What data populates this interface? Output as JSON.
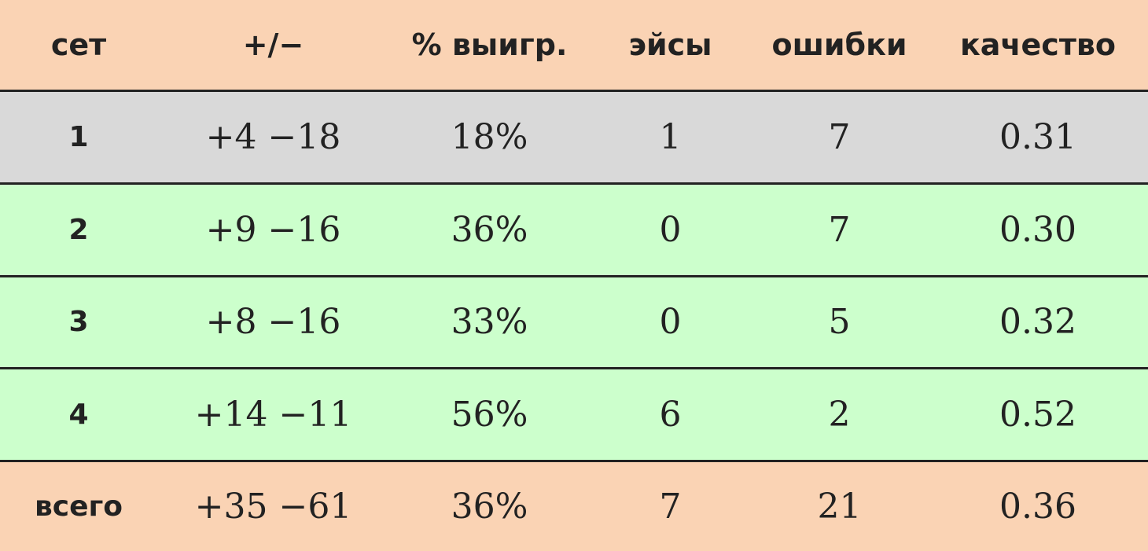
{
  "colors": {
    "header": "#fad3b4",
    "set1": "#d9d9d9",
    "sets": "#ccffcc",
    "total": "#fad3b4"
  },
  "headers": [
    "сет",
    "+/−",
    "% выигр.",
    "эйсы",
    "ошибки",
    "качество"
  ],
  "rows": [
    [
      "1",
      "+4 −18",
      "18%",
      "1",
      "7",
      "0.31"
    ],
    [
      "2",
      "+9 −16",
      "36%",
      "0",
      "7",
      "0.30"
    ],
    [
      "3",
      "+8 −16",
      "33%",
      "0",
      "5",
      "0.32"
    ],
    [
      "4",
      "+14 −11",
      "56%",
      "6",
      "2",
      "0.52"
    ]
  ],
  "total": [
    "всего",
    "+35 −61",
    "36%",
    "7",
    "21",
    "0.36"
  ]
}
